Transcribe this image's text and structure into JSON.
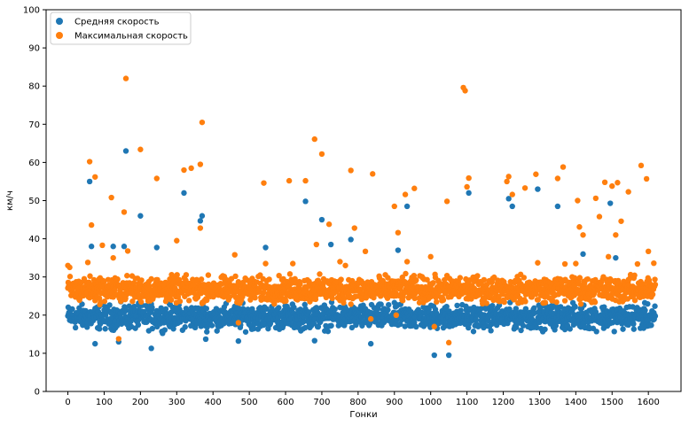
{
  "chart_data": {
    "type": "scatter",
    "title": "",
    "xlabel": "Гонки",
    "ylabel": "км/ч",
    "xlim": [
      -60,
      1690
    ],
    "ylim": [
      0,
      100
    ],
    "xticks": [
      0,
      100,
      200,
      300,
      400,
      500,
      600,
      700,
      800,
      900,
      1000,
      1100,
      1200,
      1300,
      1400,
      1500,
      1600
    ],
    "yticks": [
      0,
      10,
      20,
      30,
      40,
      50,
      60,
      70,
      80,
      90,
      100
    ],
    "grid": false,
    "legend_position": "top-left",
    "n_points": 1620,
    "series": [
      {
        "name": "Средняя скорость",
        "color": "#1f77b4",
        "base_range": [
          15,
          24
        ],
        "outliers": [
          [
            60,
            55
          ],
          [
            65,
            38
          ],
          [
            75,
            12.5
          ],
          [
            125,
            38
          ],
          [
            140,
            13
          ],
          [
            155,
            38
          ],
          [
            160,
            63
          ],
          [
            200,
            46
          ],
          [
            230,
            11.3
          ],
          [
            245,
            37.7
          ],
          [
            320,
            52
          ],
          [
            365,
            44.7
          ],
          [
            370,
            46
          ],
          [
            380,
            13.7
          ],
          [
            470,
            13.2
          ],
          [
            545,
            37.7
          ],
          [
            655,
            49.8
          ],
          [
            680,
            13.3
          ],
          [
            700,
            45
          ],
          [
            725,
            38.5
          ],
          [
            780,
            39.8
          ],
          [
            835,
            12.5
          ],
          [
            910,
            37
          ],
          [
            935,
            48.5
          ],
          [
            1010,
            9.5
          ],
          [
            1050,
            9.5
          ],
          [
            1105,
            52
          ],
          [
            1215,
            50.5
          ],
          [
            1225,
            48.5
          ],
          [
            1295,
            53
          ],
          [
            1350,
            48.5
          ],
          [
            1420,
            36
          ],
          [
            1495,
            49.3
          ],
          [
            1510,
            35
          ]
        ]
      },
      {
        "name": "Максимальная скорость",
        "color": "#ff7f0e",
        "base_range": [
          22,
          31.5
        ],
        "outliers": [
          [
            0,
            33
          ],
          [
            5,
            32.5
          ],
          [
            55,
            33.8
          ],
          [
            60,
            60.2
          ],
          [
            65,
            43.6
          ],
          [
            75,
            56.2
          ],
          [
            95,
            38.3
          ],
          [
            120,
            50.8
          ],
          [
            125,
            35
          ],
          [
            140,
            13.8
          ],
          [
            155,
            47
          ],
          [
            160,
            82
          ],
          [
            165,
            36.8
          ],
          [
            200,
            63.4
          ],
          [
            245,
            55.8
          ],
          [
            300,
            39.5
          ],
          [
            320,
            58
          ],
          [
            340,
            58.5
          ],
          [
            365,
            59.5
          ],
          [
            370,
            70.5
          ],
          [
            365,
            42.8
          ],
          [
            460,
            35.8
          ],
          [
            470,
            18
          ],
          [
            540,
            54.6
          ],
          [
            545,
            33.5
          ],
          [
            610,
            55.2
          ],
          [
            620,
            33.5
          ],
          [
            655,
            55.2
          ],
          [
            680,
            66.1
          ],
          [
            685,
            38.5
          ],
          [
            700,
            62.2
          ],
          [
            720,
            43.8
          ],
          [
            750,
            34
          ],
          [
            765,
            33
          ],
          [
            780,
            57.9
          ],
          [
            790,
            42.8
          ],
          [
            820,
            36.7
          ],
          [
            835,
            19
          ],
          [
            840,
            57
          ],
          [
            900,
            48.5
          ],
          [
            905,
            20
          ],
          [
            910,
            41.6
          ],
          [
            930,
            51.6
          ],
          [
            935,
            34
          ],
          [
            955,
            53.2
          ],
          [
            1000,
            35.3
          ],
          [
            1010,
            17
          ],
          [
            1045,
            49.8
          ],
          [
            1050,
            12.8
          ],
          [
            1090,
            79.6
          ],
          [
            1095,
            78.8
          ],
          [
            1100,
            53.6
          ],
          [
            1105,
            55.9
          ],
          [
            1210,
            55
          ],
          [
            1215,
            56.3
          ],
          [
            1225,
            51.6
          ],
          [
            1260,
            53.3
          ],
          [
            1290,
            56.9
          ],
          [
            1295,
            33.7
          ],
          [
            1350,
            55.8
          ],
          [
            1365,
            58.8
          ],
          [
            1370,
            33.4
          ],
          [
            1400,
            33.5
          ],
          [
            1405,
            50
          ],
          [
            1410,
            43.1
          ],
          [
            1420,
            41
          ],
          [
            1455,
            50.6
          ],
          [
            1465,
            45.8
          ],
          [
            1480,
            54.8
          ],
          [
            1490,
            35.3
          ],
          [
            1500,
            53.8
          ],
          [
            1510,
            41
          ],
          [
            1515,
            54.7
          ],
          [
            1525,
            44.6
          ],
          [
            1545,
            52.3
          ],
          [
            1570,
            33.4
          ],
          [
            1580,
            59.2
          ],
          [
            1595,
            55.7
          ],
          [
            1600,
            36.7
          ],
          [
            1615,
            33.6
          ]
        ]
      }
    ]
  }
}
